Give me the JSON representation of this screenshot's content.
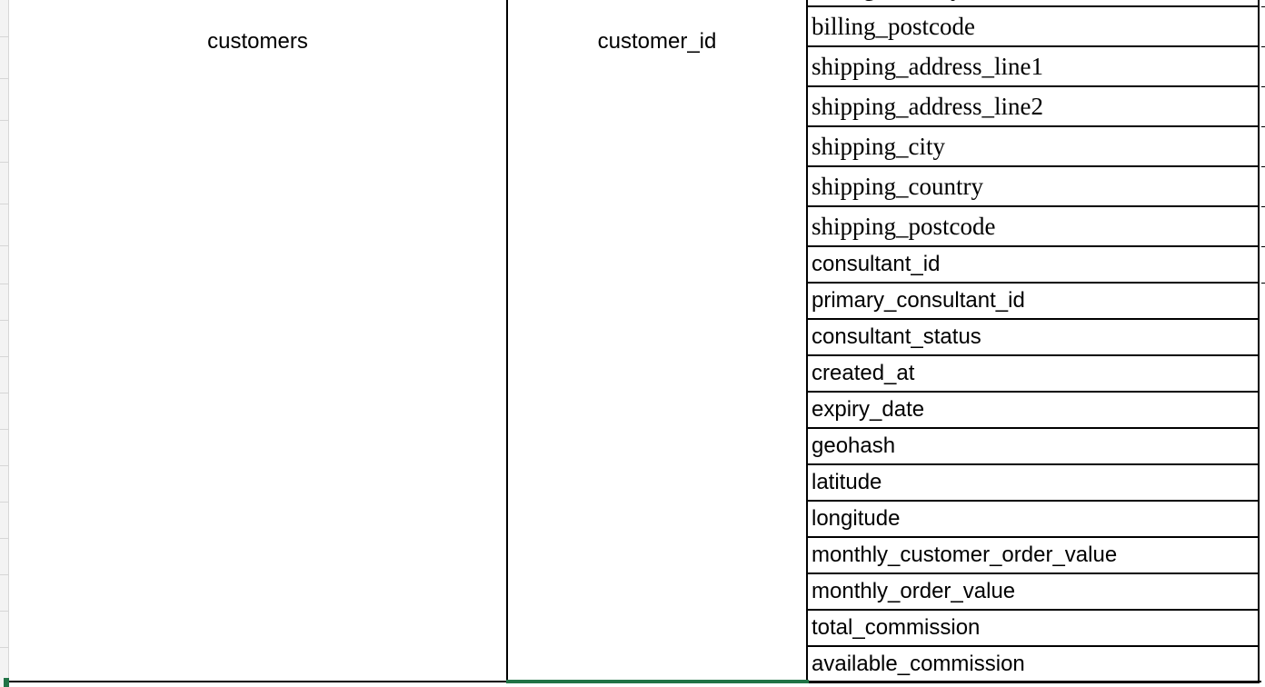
{
  "sheet": {
    "table_name": "customers",
    "key_column": "customer_id",
    "partial_top_field": "billing_country",
    "fields": [
      {
        "label": "billing_postcode",
        "style": "serif"
      },
      {
        "label": "shipping_address_line1",
        "style": "serif"
      },
      {
        "label": "shipping_address_line2",
        "style": "serif"
      },
      {
        "label": "shipping_city",
        "style": "serif"
      },
      {
        "label": "shipping_country",
        "style": "serif"
      },
      {
        "label": "shipping_postcode",
        "style": "serif"
      },
      {
        "label": "consultant_id",
        "style": "sans"
      },
      {
        "label": "primary_consultant_id",
        "style": "sans"
      },
      {
        "label": "consultant_status",
        "style": "sans"
      },
      {
        "label": "created_at",
        "style": "sans"
      },
      {
        "label": "expiry_date",
        "style": "sans"
      },
      {
        "label": "geohash",
        "style": "sans"
      },
      {
        "label": "latitude",
        "style": "sans"
      },
      {
        "label": "longitude",
        "style": "sans"
      },
      {
        "label": "monthly_customer_order_value",
        "style": "sans"
      },
      {
        "label": "monthly_order_value",
        "style": "sans"
      },
      {
        "label": "total_commission",
        "style": "sans"
      },
      {
        "label": "available_commission",
        "style": "sans"
      }
    ],
    "colors": {
      "grid_line": "#000000",
      "selection": "#217346",
      "row_header_bg": "#f3f3f3"
    }
  }
}
